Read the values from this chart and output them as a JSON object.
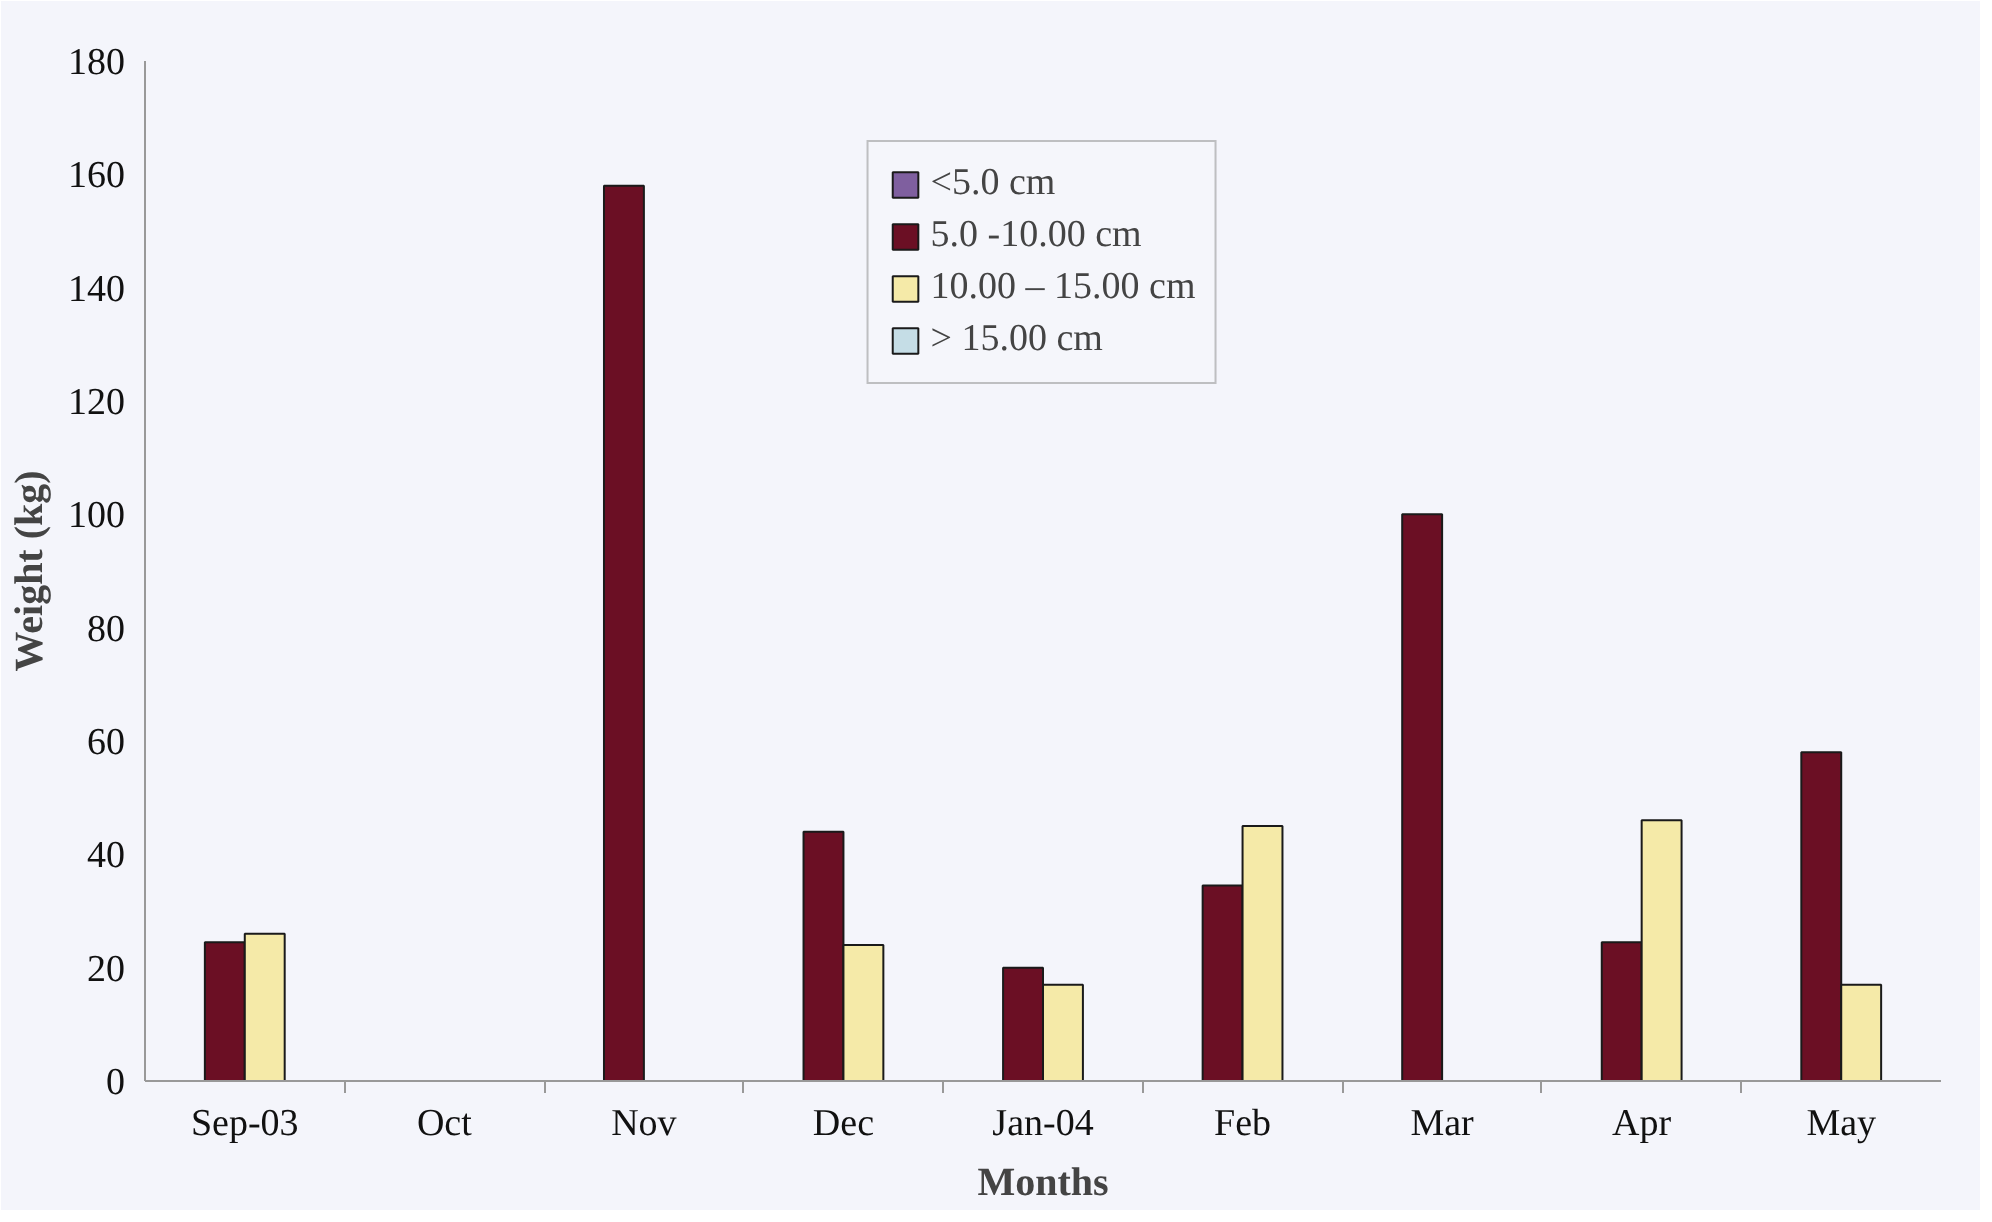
{
  "chart_data": {
    "type": "bar",
    "xlabel": "Months",
    "ylabel": "Weight (kg)",
    "categories": [
      "Sep-03",
      "Oct",
      "Nov",
      "Dec",
      "Jan-04",
      "Feb",
      "Mar",
      "Apr",
      "May"
    ],
    "series": [
      {
        "name": "<5.0 cm",
        "color": "#7f5f9f",
        "values": [
          null,
          null,
          null,
          null,
          null,
          null,
          null,
          null,
          null
        ]
      },
      {
        "name": "5.0 -10.00 cm",
        "color": "#6b0f24",
        "values": [
          24.5,
          null,
          158,
          44,
          20,
          34.5,
          100,
          24.5,
          58
        ]
      },
      {
        "name": "10.00 – 15.00 cm",
        "color": "#f5eaa8",
        "values": [
          26,
          null,
          null,
          24,
          17,
          45,
          null,
          46,
          17
        ]
      },
      {
        "name": "> 15.00 cm",
        "color": "#c5dde6",
        "values": [
          null,
          null,
          null,
          null,
          null,
          null,
          null,
          null,
          null
        ]
      }
    ],
    "ylim": [
      0,
      180
    ],
    "yticks": [
      0,
      20,
      40,
      60,
      80,
      100,
      120,
      140,
      160,
      180
    ],
    "grid": false,
    "legend": "top"
  }
}
